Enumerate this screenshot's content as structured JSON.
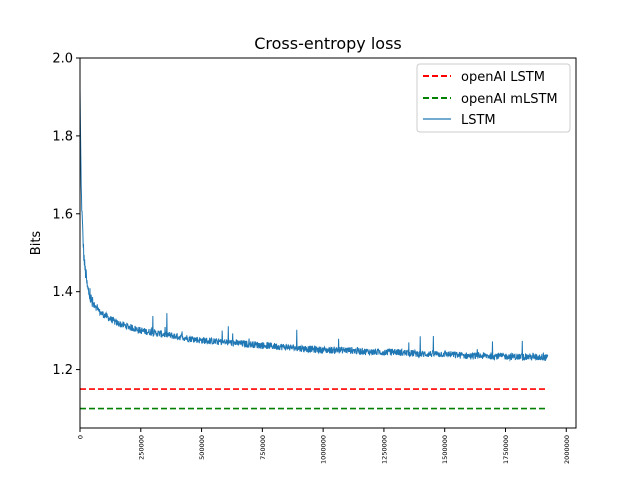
{
  "chart_data": {
    "type": "line",
    "title": "Cross-entropy loss",
    "xlabel": "",
    "ylabel": "Bits",
    "xlim": [
      0,
      2040000
    ],
    "ylim": [
      1.05,
      2.0
    ],
    "xticks": [
      0,
      250000,
      500000,
      750000,
      1000000,
      1250000,
      1500000,
      1750000,
      2000000
    ],
    "xtick_labels": [
      "0",
      "250000",
      "500000",
      "750000",
      "1000000",
      "1250000",
      "1500000",
      "1750000",
      "2000000"
    ],
    "yticks": [
      1.2,
      1.4,
      1.6,
      1.8,
      2.0
    ],
    "ytick_labels": [
      "1.2",
      "1.4",
      "1.6",
      "1.8",
      "2.0"
    ],
    "grid": false,
    "legend_position": "top-right",
    "series": [
      {
        "name": "openAI LSTM",
        "style": "dashed",
        "color": "#ff0000",
        "x": [
          0,
          1925000
        ],
        "y": [
          1.15,
          1.15
        ]
      },
      {
        "name": "openAI mLSTM",
        "style": "dashed",
        "color": "#008000",
        "x": [
          0,
          1925000
        ],
        "y": [
          1.1,
          1.1
        ]
      },
      {
        "name": "LSTM",
        "style": "solid",
        "color": "#1f77b4",
        "x": [
          0,
          5000,
          10000,
          15000,
          20000,
          25000,
          30000,
          40000,
          50000,
          60000,
          75000,
          100000,
          125000,
          150000,
          175000,
          200000,
          250000,
          300000,
          350000,
          400000,
          450000,
          500000,
          600000,
          700000,
          800000,
          900000,
          1000000,
          1100000,
          1200000,
          1300000,
          1400000,
          1500000,
          1600000,
          1700000,
          1800000,
          1900000,
          1925000
        ],
        "y": [
          1.92,
          1.66,
          1.57,
          1.5,
          1.46,
          1.44,
          1.41,
          1.39,
          1.37,
          1.36,
          1.35,
          1.34,
          1.33,
          1.32,
          1.315,
          1.31,
          1.3,
          1.295,
          1.29,
          1.285,
          1.28,
          1.275,
          1.27,
          1.265,
          1.26,
          1.255,
          1.25,
          1.25,
          1.245,
          1.245,
          1.24,
          1.24,
          1.235,
          1.235,
          1.233,
          1.232,
          1.23
        ]
      }
    ]
  }
}
